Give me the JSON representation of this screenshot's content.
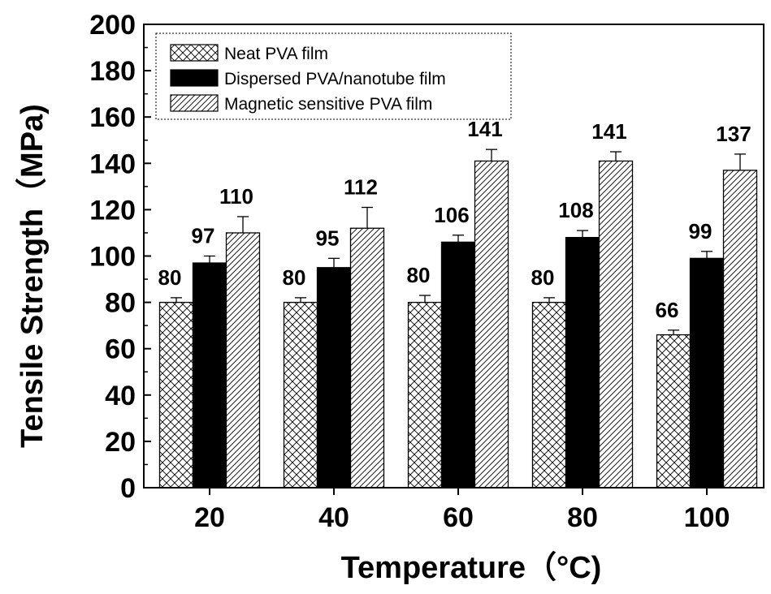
{
  "chart_data": {
    "type": "bar",
    "title": "",
    "xlabel": "Temperature（°C)",
    "ylabel": "Tensile Strength（MPa)",
    "categories": [
      "20",
      "40",
      "60",
      "80",
      "100"
    ],
    "ylim": [
      0,
      200
    ],
    "yticks": [
      "0",
      "20",
      "40",
      "60",
      "80",
      "100",
      "120",
      "140",
      "160",
      "180",
      "200"
    ],
    "grid": false,
    "legend_position": "top-left",
    "series": [
      {
        "name": "Neat PVA film",
        "pattern": "crosshatch",
        "values": [
          80,
          80,
          80,
          80,
          66
        ],
        "errors": [
          2,
          2,
          3,
          2,
          2
        ],
        "labels": [
          "80",
          "80",
          "80",
          "80",
          "66"
        ]
      },
      {
        "name": "Dispersed PVA/nanotube film",
        "pattern": "solid-black",
        "values": [
          97,
          95,
          106,
          108,
          99
        ],
        "errors": [
          3,
          4,
          3,
          3,
          3
        ],
        "labels": [
          "97",
          "95",
          "106",
          "108",
          "99"
        ]
      },
      {
        "name": "Magnetic sensitive PVA film",
        "pattern": "diagonal-hatch",
        "values": [
          110,
          112,
          141,
          141,
          137
        ],
        "errors": [
          7,
          9,
          5,
          4,
          7
        ],
        "labels": [
          "110",
          "112",
          "141",
          "141",
          "137"
        ]
      }
    ]
  }
}
